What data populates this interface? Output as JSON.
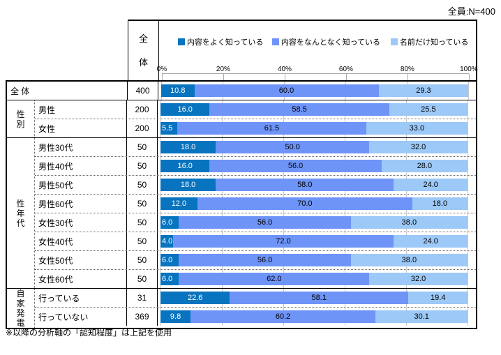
{
  "title": "全員:N=400",
  "header": {
    "n_column": "全体"
  },
  "axis": {
    "ticks": [
      "0%",
      "20%",
      "40%",
      "60%",
      "80%",
      "100%"
    ]
  },
  "footer": "※以降の分析軸の「認知程度」は上記を使用",
  "colors": {
    "grid": "#C6C6C6",
    "border": "#000000",
    "value_text_on_dark": "#FFFFFF",
    "value_text": "#000000"
  },
  "chart_data": {
    "type": "bar",
    "stacked": true,
    "orientation": "horizontal",
    "unit": "%",
    "xlim": [
      0,
      100
    ],
    "series": [
      {
        "name": "内容をよく知っている",
        "color": "#0873BE"
      },
      {
        "name": "内容をなんとなく知っている",
        "color": "#6E94F8"
      },
      {
        "name": "名前だけ知っている",
        "color": "#9CC9F7"
      }
    ],
    "groups": [
      {
        "label": "",
        "rows": [
          {
            "label": "全 体",
            "n": 400,
            "values": [
              10.8,
              60.0,
              29.3
            ]
          }
        ]
      },
      {
        "label": "性別",
        "rows": [
          {
            "label": "男性",
            "n": 200,
            "values": [
              16.0,
              58.5,
              25.5
            ]
          },
          {
            "label": "女性",
            "n": 200,
            "values": [
              5.5,
              61.5,
              33.0
            ]
          }
        ]
      },
      {
        "label": "性年代",
        "rows": [
          {
            "label": "男性30代",
            "n": 50,
            "values": [
              18.0,
              50.0,
              32.0
            ]
          },
          {
            "label": "男性40代",
            "n": 50,
            "values": [
              16.0,
              56.0,
              28.0
            ]
          },
          {
            "label": "男性50代",
            "n": 50,
            "values": [
              18.0,
              58.0,
              24.0
            ]
          },
          {
            "label": "男性60代",
            "n": 50,
            "values": [
              12.0,
              70.0,
              18.0
            ]
          },
          {
            "label": "女性30代",
            "n": 50,
            "values": [
              6.0,
              56.0,
              38.0
            ]
          },
          {
            "label": "女性40代",
            "n": 50,
            "values": [
              4.0,
              72.0,
              24.0
            ]
          },
          {
            "label": "女性50代",
            "n": 50,
            "values": [
              6.0,
              56.0,
              38.0
            ]
          },
          {
            "label": "女性60代",
            "n": 50,
            "values": [
              6.0,
              62.0,
              32.0
            ]
          }
        ]
      },
      {
        "label": "自家発電",
        "rows": [
          {
            "label": "行っている",
            "n": 31,
            "values": [
              22.6,
              58.1,
              19.4
            ]
          },
          {
            "label": "行っていない",
            "n": 369,
            "values": [
              9.8,
              60.2,
              30.1
            ]
          }
        ]
      }
    ]
  }
}
